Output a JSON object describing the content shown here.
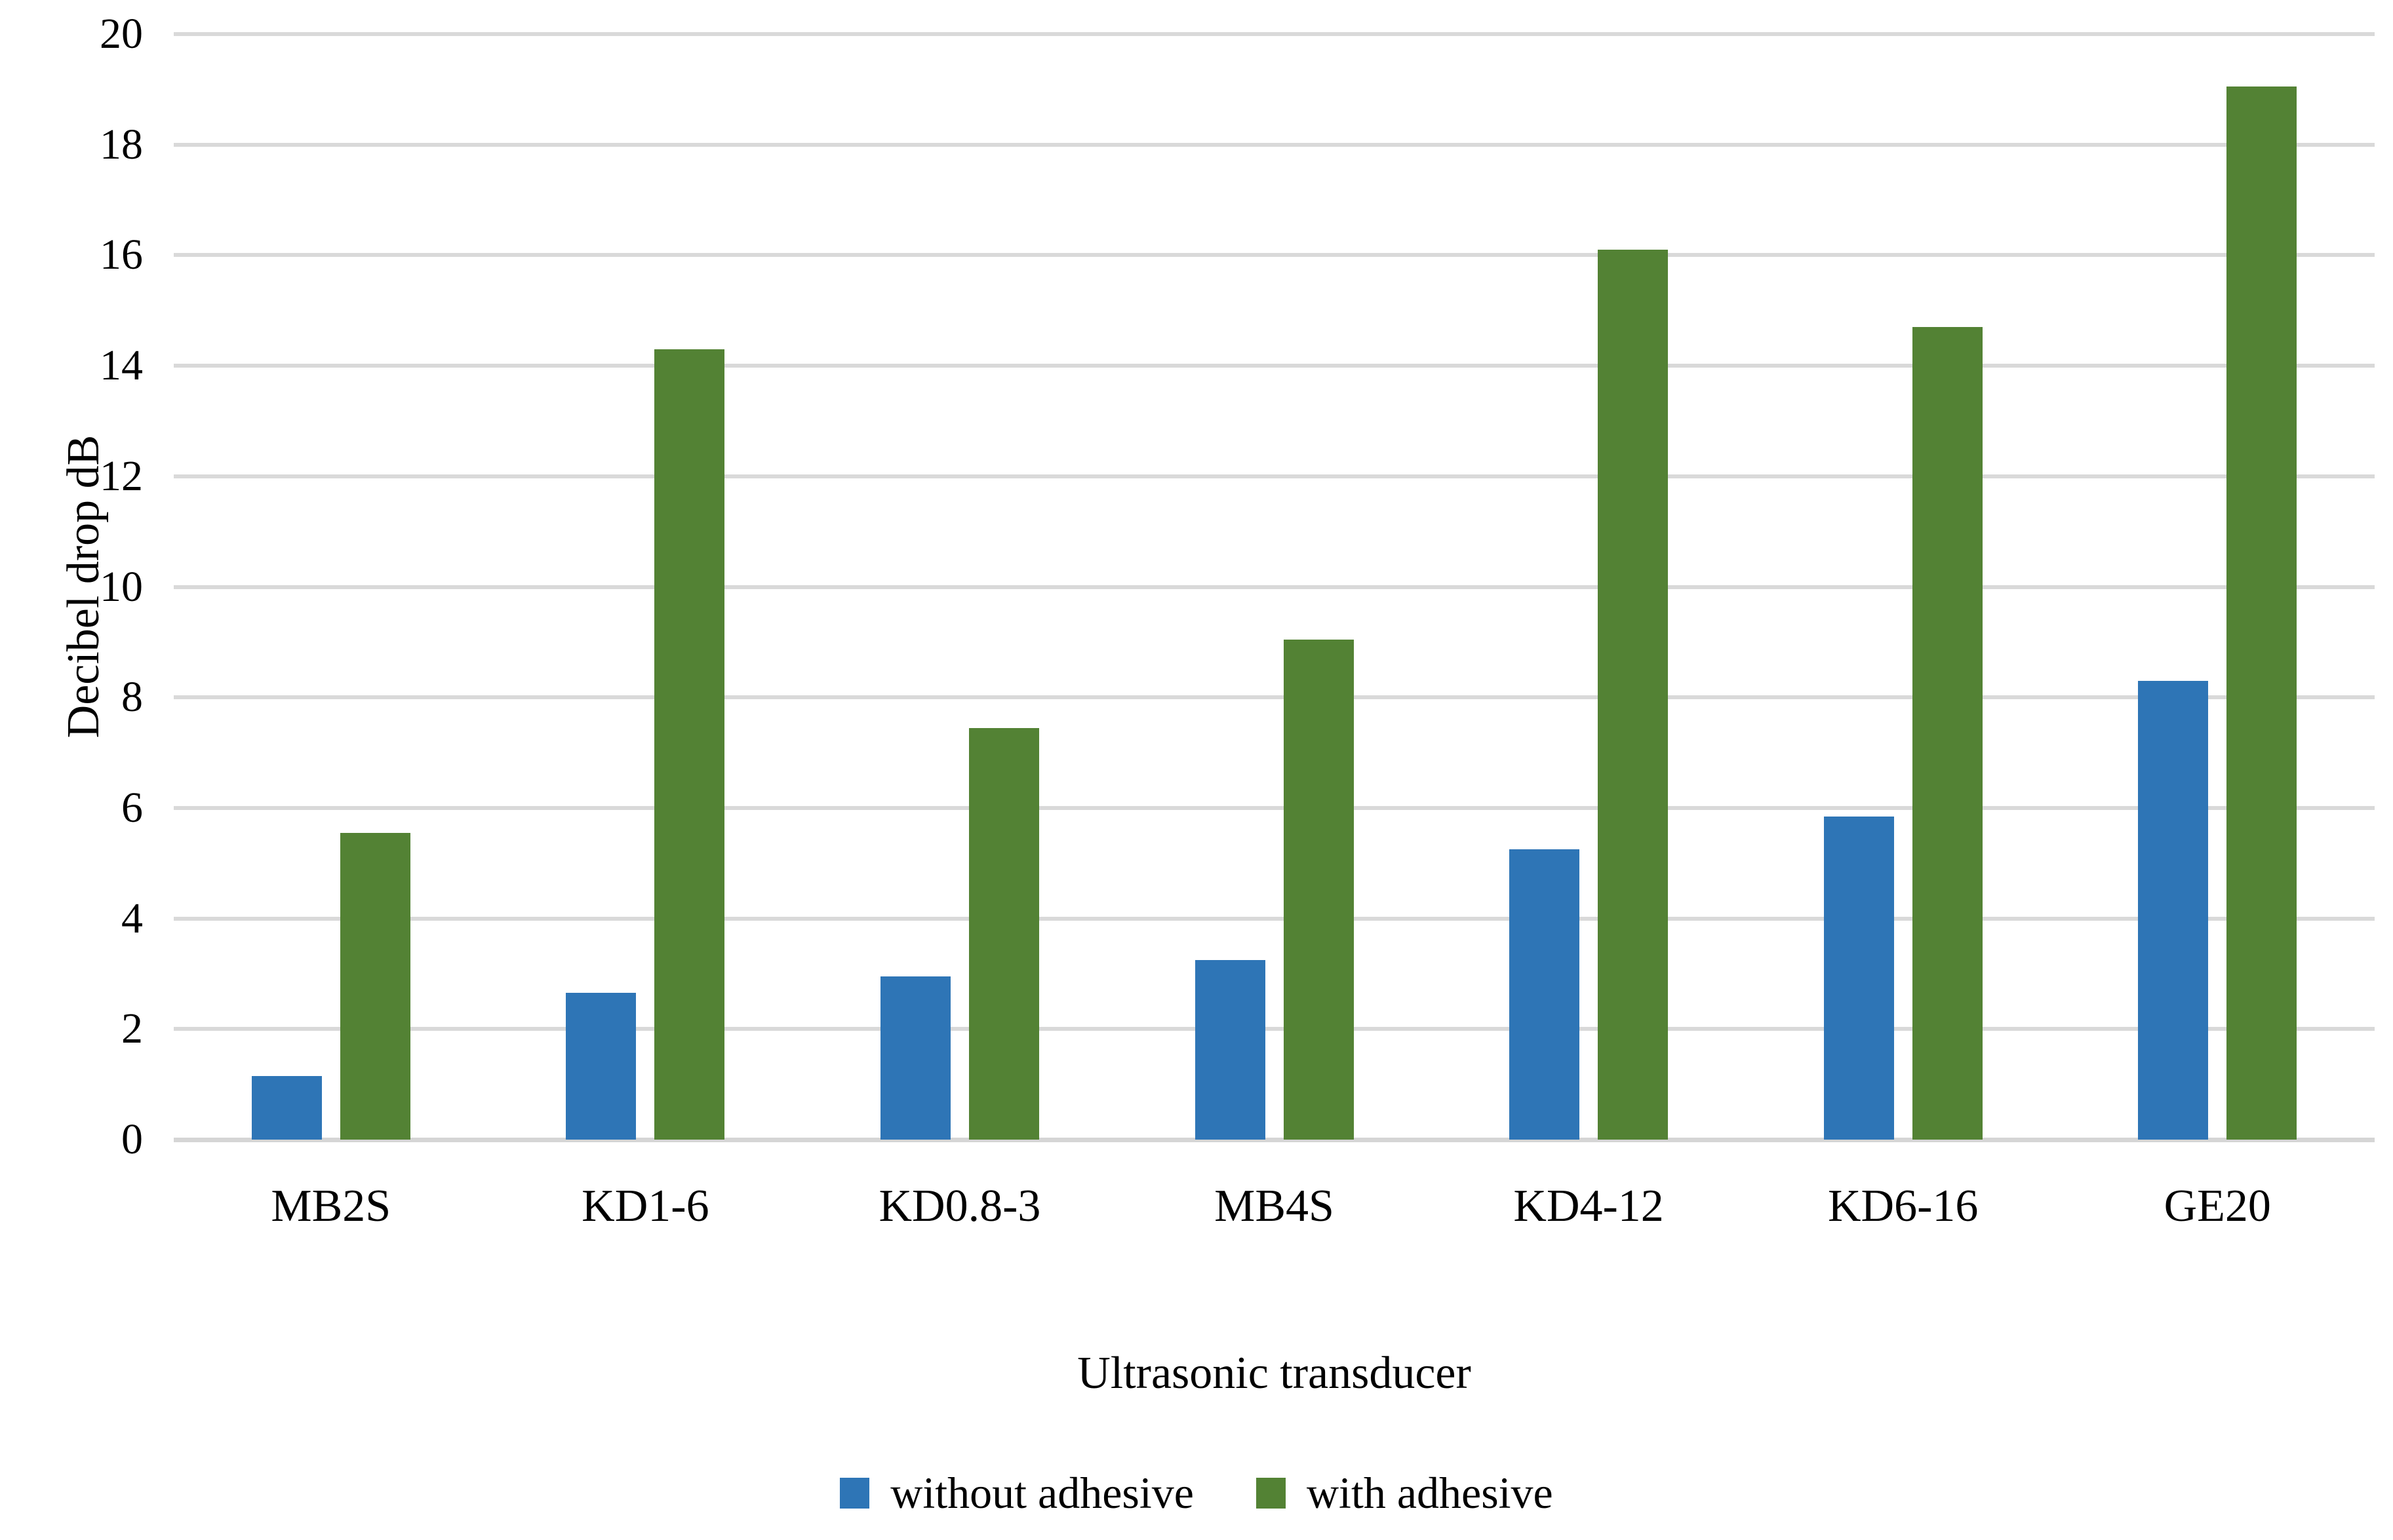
{
  "chart_data": {
    "type": "bar",
    "title": "",
    "categories": [
      "MB2S",
      "KD1-6",
      "KD0.8-3",
      "MB4S",
      "KD4-12",
      "KD6-16",
      "GE20"
    ],
    "series": [
      {
        "name": "without adhesive",
        "color": "#2E75B6",
        "values": [
          1.15,
          2.65,
          2.95,
          3.25,
          5.25,
          5.85,
          8.3
        ]
      },
      {
        "name": "with adhesive",
        "color": "#538234",
        "values": [
          5.55,
          14.3,
          7.45,
          9.05,
          16.1,
          14.7,
          19.05
        ]
      }
    ],
    "xlabel": "Ultrasonic transducer",
    "ylabel": "Decibel drop dB",
    "ylim": [
      0,
      20
    ],
    "y_ticks": [
      0,
      2,
      4,
      6,
      8,
      10,
      12,
      14,
      16,
      18,
      20
    ],
    "grid": "horizontal",
    "gridline_color": "#D9D9D9",
    "axisline_color": "#D5D5D5",
    "background": "#FFFFFF",
    "legend_position": "bottom",
    "legend_labels": [
      "without adhesive",
      "with adhesive"
    ]
  }
}
